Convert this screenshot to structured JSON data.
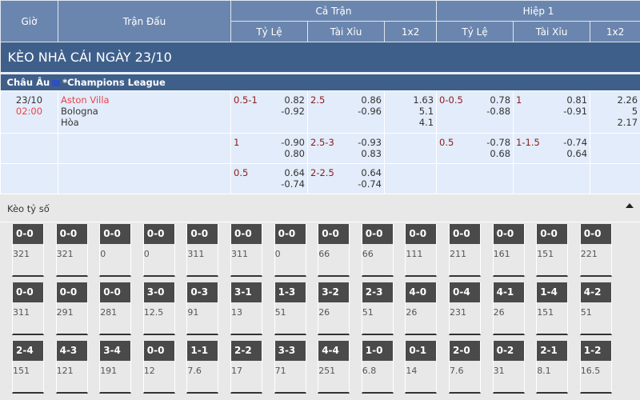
{
  "header": {
    "gio": "Giờ",
    "tran_dau": "Trận Đấu",
    "ca_tran": "Cả Trận",
    "hiep1": "Hiệp 1",
    "ty_le": "Tỷ Lệ",
    "tai_xiu": "Tài Xỉu",
    "x12": "1x2"
  },
  "section_title": "KÈO NHÀ CÁI NGÀY 23/10",
  "league": {
    "region": "Châu Âu",
    "name": "*Champions League",
    "flag": "eu-flag-icon"
  },
  "match": {
    "date": "23/10",
    "time": "02:00",
    "home": "Aston Villa",
    "away": "Bologna",
    "draw": "Hòa"
  },
  "rows": [
    {
      "ft_hc": "0.5-1",
      "ft_hc_o": [
        "0.82",
        "-0.92"
      ],
      "ft_ou": "2.5",
      "ft_ou_o": [
        "0.86",
        "-0.96"
      ],
      "ft_1x2": [
        "1.63",
        "5.1",
        "4.1"
      ],
      "h1_hc": "0-0.5",
      "h1_hc_o": [
        "0.78",
        "-0.88"
      ],
      "h1_ou": "1",
      "h1_ou_o": [
        "0.81",
        "-0.91"
      ],
      "h1_1x2": [
        "2.26",
        "5",
        "2.17"
      ]
    },
    {
      "ft_hc": "1",
      "ft_hc_o": [
        "-0.90",
        "0.80"
      ],
      "ft_ou": "2.5-3",
      "ft_ou_o": [
        "-0.93",
        "0.83"
      ],
      "ft_1x2": [],
      "h1_hc": "0.5",
      "h1_hc_o": [
        "-0.78",
        "0.68"
      ],
      "h1_ou": "1-1.5",
      "h1_ou_o": [
        "-0.74",
        "0.64"
      ],
      "h1_1x2": []
    },
    {
      "ft_hc": "0.5",
      "ft_hc_o": [
        "0.64",
        "-0.74"
      ],
      "ft_ou": "2-2.5",
      "ft_ou_o": [
        "0.64",
        "-0.74"
      ],
      "ft_1x2": [],
      "h1_hc": "",
      "h1_hc_o": [],
      "h1_ou": "",
      "h1_ou_o": [],
      "h1_1x2": []
    }
  ],
  "correct_score": {
    "title": "Kèo tỷ số",
    "toggle_icon": "caret-up-icon",
    "rows": [
      [
        [
          "0-0",
          "321"
        ],
        [
          "0-0",
          "321"
        ],
        [
          "0-0",
          "0"
        ],
        [
          "0-0",
          "0"
        ],
        [
          "0-0",
          "311"
        ],
        [
          "0-0",
          "311"
        ],
        [
          "0-0",
          "0"
        ],
        [
          "0-0",
          "66"
        ],
        [
          "0-0",
          "66"
        ],
        [
          "0-0",
          "111"
        ],
        [
          "0-0",
          "211"
        ],
        [
          "0-0",
          "161"
        ],
        [
          "0-0",
          "151"
        ],
        [
          "0-0",
          "221"
        ]
      ],
      [
        [
          "0-0",
          "311"
        ],
        [
          "0-0",
          "291"
        ],
        [
          "0-0",
          "281"
        ],
        [
          "3-0",
          "12.5"
        ],
        [
          "0-3",
          "91"
        ],
        [
          "3-1",
          "13"
        ],
        [
          "1-3",
          "51"
        ],
        [
          "3-2",
          "26"
        ],
        [
          "2-3",
          "51"
        ],
        [
          "4-0",
          "26"
        ],
        [
          "0-4",
          "231"
        ],
        [
          "4-1",
          "26"
        ],
        [
          "1-4",
          "151"
        ],
        [
          "4-2",
          "51"
        ]
      ],
      [
        [
          "2-4",
          "151"
        ],
        [
          "4-3",
          "121"
        ],
        [
          "3-4",
          "191"
        ],
        [
          "0-0",
          "12"
        ],
        [
          "1-1",
          "7.6"
        ],
        [
          "2-2",
          "17"
        ],
        [
          "3-3",
          "71"
        ],
        [
          "4-4",
          "251"
        ],
        [
          "1-0",
          "6.8"
        ],
        [
          "0-1",
          "14"
        ],
        [
          "2-0",
          "7.6"
        ],
        [
          "0-2",
          "31"
        ],
        [
          "2-1",
          "8.1"
        ],
        [
          "1-2",
          "16.5"
        ]
      ]
    ]
  }
}
